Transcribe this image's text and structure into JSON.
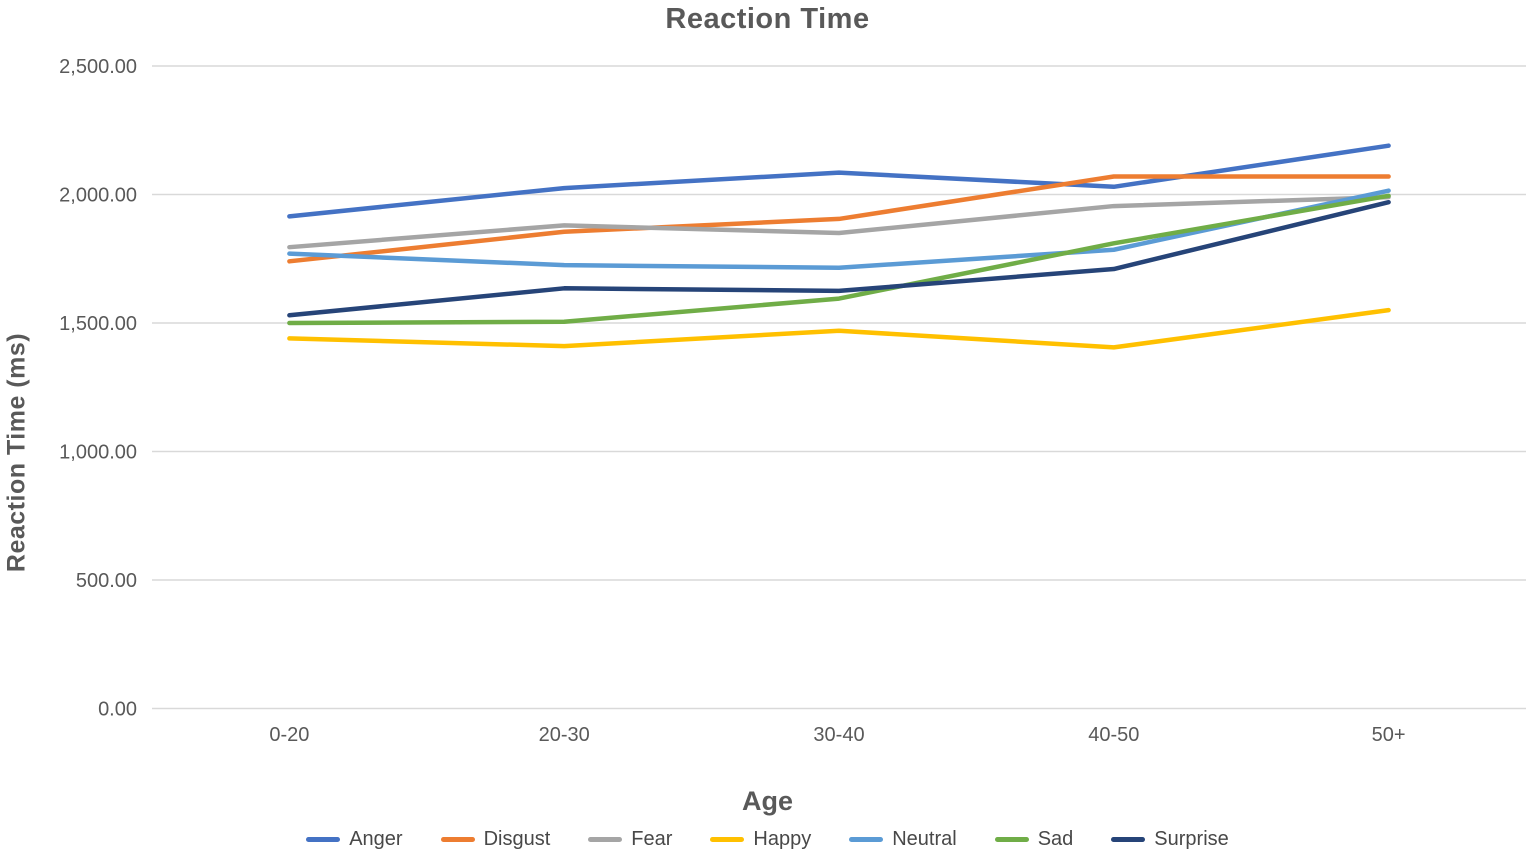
{
  "title": "Reaction Time",
  "chart_data": {
    "type": "line",
    "title": "Reaction Time",
    "xlabel": "Age",
    "ylabel": "Reaction Time (ms)",
    "categories": [
      "0-20",
      "20-30",
      "30-40",
      "40-50",
      "50+"
    ],
    "series": [
      {
        "name": "Anger",
        "color": "#4472C4",
        "values": [
          1915,
          2025,
          2085,
          2030,
          2190
        ]
      },
      {
        "name": "Disgust",
        "color": "#ED7D31",
        "values": [
          1740,
          1855,
          1905,
          2070,
          2070
        ]
      },
      {
        "name": "Fear",
        "color": "#A5A5A5",
        "values": [
          1795,
          1880,
          1850,
          1955,
          1990
        ]
      },
      {
        "name": "Happy",
        "color": "#FFC000",
        "values": [
          1440,
          1410,
          1470,
          1405,
          1550
        ]
      },
      {
        "name": "Neutral",
        "color": "#5B9BD5",
        "values": [
          1770,
          1725,
          1715,
          1785,
          2015
        ]
      },
      {
        "name": "Sad",
        "color": "#70AD47",
        "values": [
          1500,
          1505,
          1595,
          1810,
          1995
        ]
      },
      {
        "name": "Surprise",
        "color": "#264478",
        "values": [
          1530,
          1635,
          1625,
          1710,
          1970
        ]
      }
    ],
    "ylim": [
      0,
      2500
    ],
    "ytick_step": 500,
    "ytick_labels": [
      "0.00",
      "500.00",
      "1,000.00",
      "1,500.00",
      "2,000.00",
      "2,500.00"
    ],
    "grid": true,
    "legend_position": "bottom",
    "style": {
      "grid_color": "#D9D9D9",
      "tick_text_color": "#595959",
      "legend_text_color": "#484848"
    }
  }
}
